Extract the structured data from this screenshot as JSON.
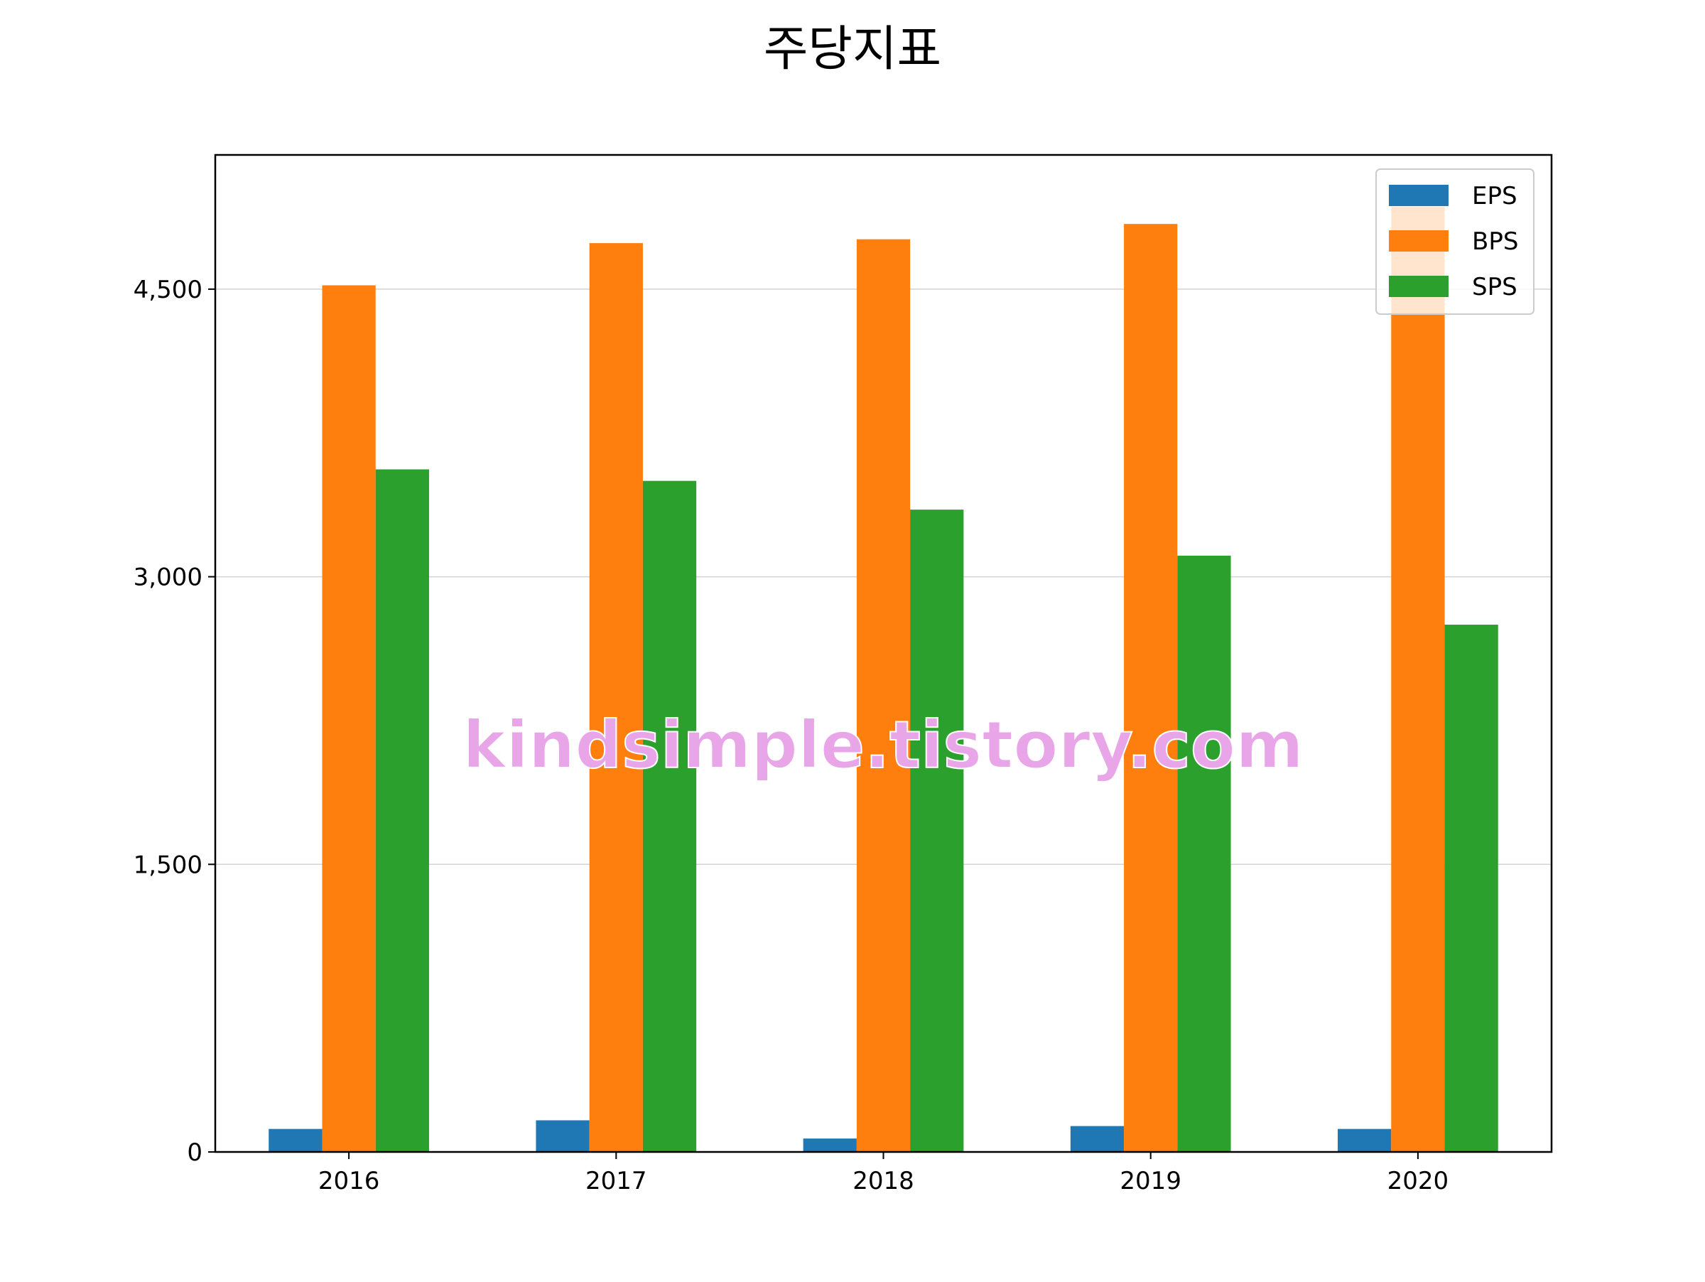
{
  "chart_data": {
    "type": "bar",
    "title": "주당지표",
    "xlabel": "",
    "ylabel": "",
    "categories": [
      "2016",
      "2017",
      "2018",
      "2019",
      "2020"
    ],
    "series": [
      {
        "name": "EPS",
        "color": "#1f77b4",
        "values": [
          120,
          165,
          70,
          135,
          120
        ]
      },
      {
        "name": "BPS",
        "color": "#ff7f0e",
        "values": [
          4520,
          4740,
          4760,
          4840,
          4930
        ]
      },
      {
        "name": "SPS",
        "color": "#2ca02c",
        "values": [
          3560,
          3500,
          3350,
          3110,
          2750
        ]
      }
    ],
    "ylim": [
      0,
      5200
    ],
    "yticks": [
      0,
      1500,
      3000,
      4500
    ],
    "ytick_labels": [
      "0",
      "1,500",
      "3,000",
      "4,500"
    ],
    "grid": "horizontal",
    "legend_position": "top-right",
    "watermark": "kindsimple.tistory.com",
    "watermark_color": "#e8a6e8"
  }
}
